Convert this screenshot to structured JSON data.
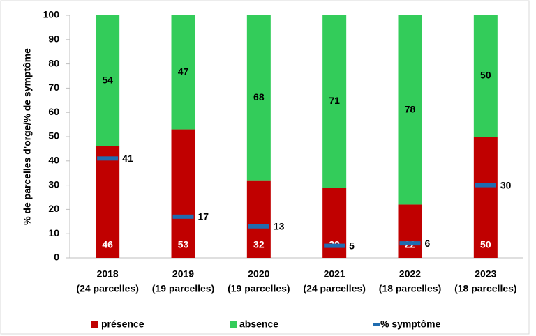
{
  "chart_data": {
    "type": "bar",
    "stacked": true,
    "y_label": "% de parcelles d'orge/% de symptôme",
    "categories": [
      [
        "2018",
        "(24 parcelles)"
      ],
      [
        "2019",
        "(19 parcelles)"
      ],
      [
        "2020",
        "(19 parcelles)"
      ],
      [
        "2021",
        "(24 parcelles)"
      ],
      [
        "2022",
        "(18 parcelles)"
      ],
      [
        "2023",
        "(18 parcelles)"
      ]
    ],
    "series": [
      {
        "name": "présence",
        "color": "#c00000",
        "label_color": "#ffffff",
        "values": [
          46,
          53,
          32,
          29,
          22,
          50
        ]
      },
      {
        "name": "absence",
        "color": "#33cc5a",
        "label_color": "#000000",
        "values": [
          54,
          47,
          68,
          71,
          78,
          50
        ]
      },
      {
        "name": "% symptôme",
        "type": "marker",
        "color": "#1f6cb0",
        "values": [
          41,
          17,
          13,
          5,
          6,
          30
        ]
      }
    ],
    "ylim": [
      0,
      100
    ],
    "yticks": [
      0,
      10,
      20,
      30,
      40,
      50,
      60,
      70,
      80,
      90,
      100
    ],
    "legend": "bottom"
  }
}
